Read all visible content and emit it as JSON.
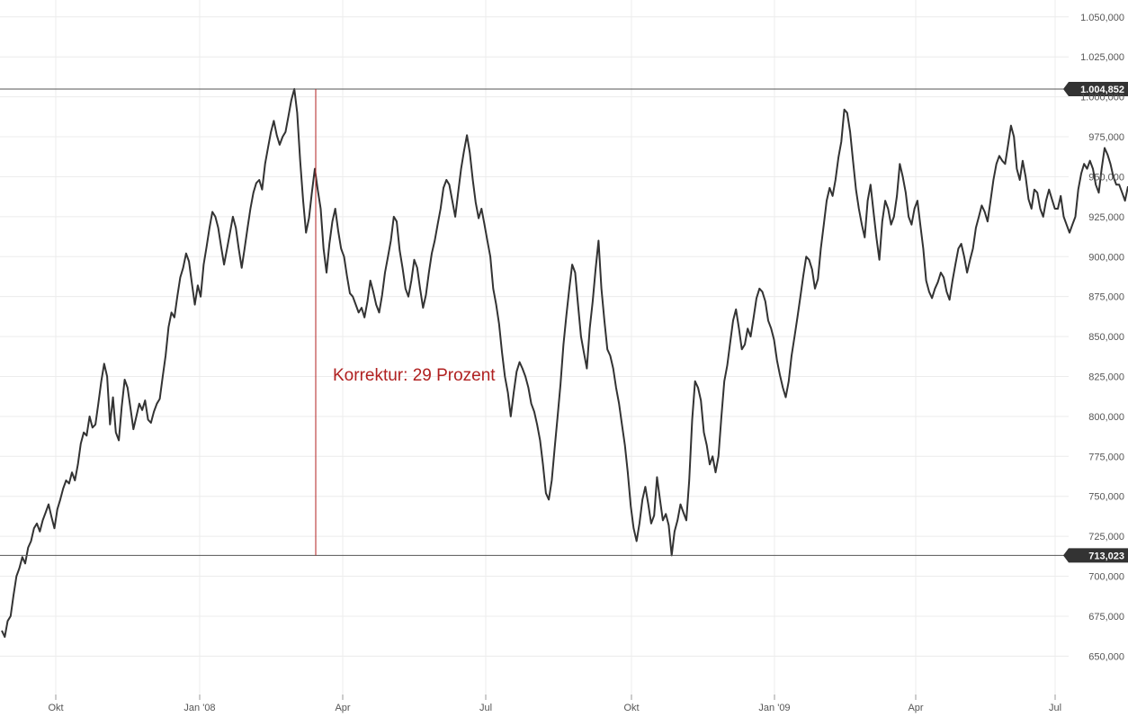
{
  "chart_data": {
    "type": "line",
    "title": "",
    "xlabel": "",
    "ylabel": "",
    "x_ticks": [
      "Okt",
      "Jan '08",
      "Apr",
      "Jul",
      "Okt",
      "Jan '09",
      "Apr",
      "Jul"
    ],
    "y_ticks": [
      "650,000",
      "675,000",
      "700,000",
      "725,000",
      "750,000",
      "775,000",
      "800,000",
      "825,000",
      "850,000",
      "875,000",
      "900,000",
      "925,000",
      "950,000",
      "975,000",
      "1.000,000",
      "1.025,000",
      "1.050,000"
    ],
    "ylim": [
      625,
      1060
    ],
    "grid": true,
    "reference_levels": [
      {
        "value": 1004.852,
        "label": "1.004,852"
      },
      {
        "value": 713.023,
        "label": "713,023"
      }
    ],
    "annotation": {
      "text": "Korrektur: 29 Prozent",
      "from": 1004.852,
      "to": 713.023
    },
    "series": [
      {
        "values": [
          666,
          662,
          672,
          675,
          688,
          700,
          705,
          712,
          708,
          718,
          722,
          730,
          733,
          728,
          735,
          740,
          745,
          737,
          730,
          742,
          748,
          755,
          760,
          758,
          765,
          760,
          770,
          783,
          790,
          788,
          800,
          793,
          795,
          808,
          822,
          833,
          825,
          795,
          812,
          790,
          785,
          806,
          823,
          818,
          805,
          792,
          800,
          808,
          804,
          810,
          798,
          796,
          803,
          808,
          811,
          825,
          838,
          856,
          865,
          862,
          875,
          887,
          893,
          902,
          897,
          883,
          870,
          882,
          875,
          895,
          906,
          918,
          928,
          925,
          918,
          906,
          895,
          905,
          915,
          925,
          918,
          905,
          893,
          905,
          918,
          930,
          940,
          946,
          948,
          942,
          958,
          968,
          978,
          985,
          976,
          970,
          975,
          978,
          988,
          998,
          1004.9,
          990,
          960,
          935,
          915,
          924,
          940,
          955,
          942,
          930,
          905,
          890,
          908,
          922,
          930,
          916,
          905,
          900,
          888,
          877,
          875,
          870,
          865,
          868,
          862,
          872,
          885,
          878,
          870,
          865,
          876,
          890,
          900,
          910,
          925,
          922,
          904,
          893,
          880,
          875,
          885,
          898,
          893,
          880,
          868,
          876,
          890,
          902,
          910,
          920,
          930,
          943,
          948,
          945,
          935,
          925,
          940,
          955,
          966,
          976,
          965,
          948,
          934,
          924,
          930,
          920,
          910,
          900,
          880,
          870,
          858,
          840,
          825,
          815,
          800,
          815,
          828,
          834,
          830,
          825,
          818,
          808,
          803,
          795,
          785,
          770,
          752,
          748,
          760,
          780,
          800,
          820,
          845,
          863,
          880,
          895,
          890,
          870,
          850,
          840,
          830,
          855,
          872,
          892,
          910,
          880,
          860,
          842,
          838,
          830,
          818,
          808,
          795,
          782,
          765,
          744,
          730,
          722,
          733,
          748,
          756,
          745,
          733,
          738,
          762,
          748,
          735,
          739,
          732,
          713.0,
          728,
          735,
          745,
          740,
          735,
          760,
          798,
          822,
          818,
          810,
          790,
          782,
          770,
          775,
          765,
          775,
          800,
          822,
          832,
          846,
          860,
          867,
          855,
          842,
          845,
          855,
          850,
          862,
          874,
          880,
          878,
          872,
          860,
          855,
          848,
          835,
          826,
          818,
          812,
          822,
          838,
          850,
          862,
          875,
          888,
          900,
          898,
          892,
          880,
          886,
          905,
          920,
          935,
          943,
          938,
          948,
          962,
          972,
          992,
          990,
          978,
          960,
          942,
          930,
          920,
          912,
          935,
          945,
          928,
          912,
          898,
          922,
          935,
          930,
          920,
          925,
          938,
          958,
          950,
          940,
          925,
          920,
          930,
          935,
          920,
          905,
          885,
          878,
          874,
          880,
          884,
          890,
          887,
          878,
          873,
          885,
          895,
          905,
          908,
          900,
          890,
          898,
          905,
          918,
          925,
          932,
          928,
          922,
          935,
          948,
          958,
          963,
          960,
          958,
          970,
          982,
          975,
          955,
          948,
          960,
          950,
          936,
          930,
          942,
          940,
          930,
          925,
          935,
          942,
          936,
          930,
          930,
          938,
          925,
          920,
          915,
          920,
          925,
          942,
          952,
          958,
          955,
          960,
          955,
          945,
          940,
          955,
          968,
          964,
          958,
          950,
          945,
          945,
          940,
          935,
          944
        ]
      }
    ]
  }
}
